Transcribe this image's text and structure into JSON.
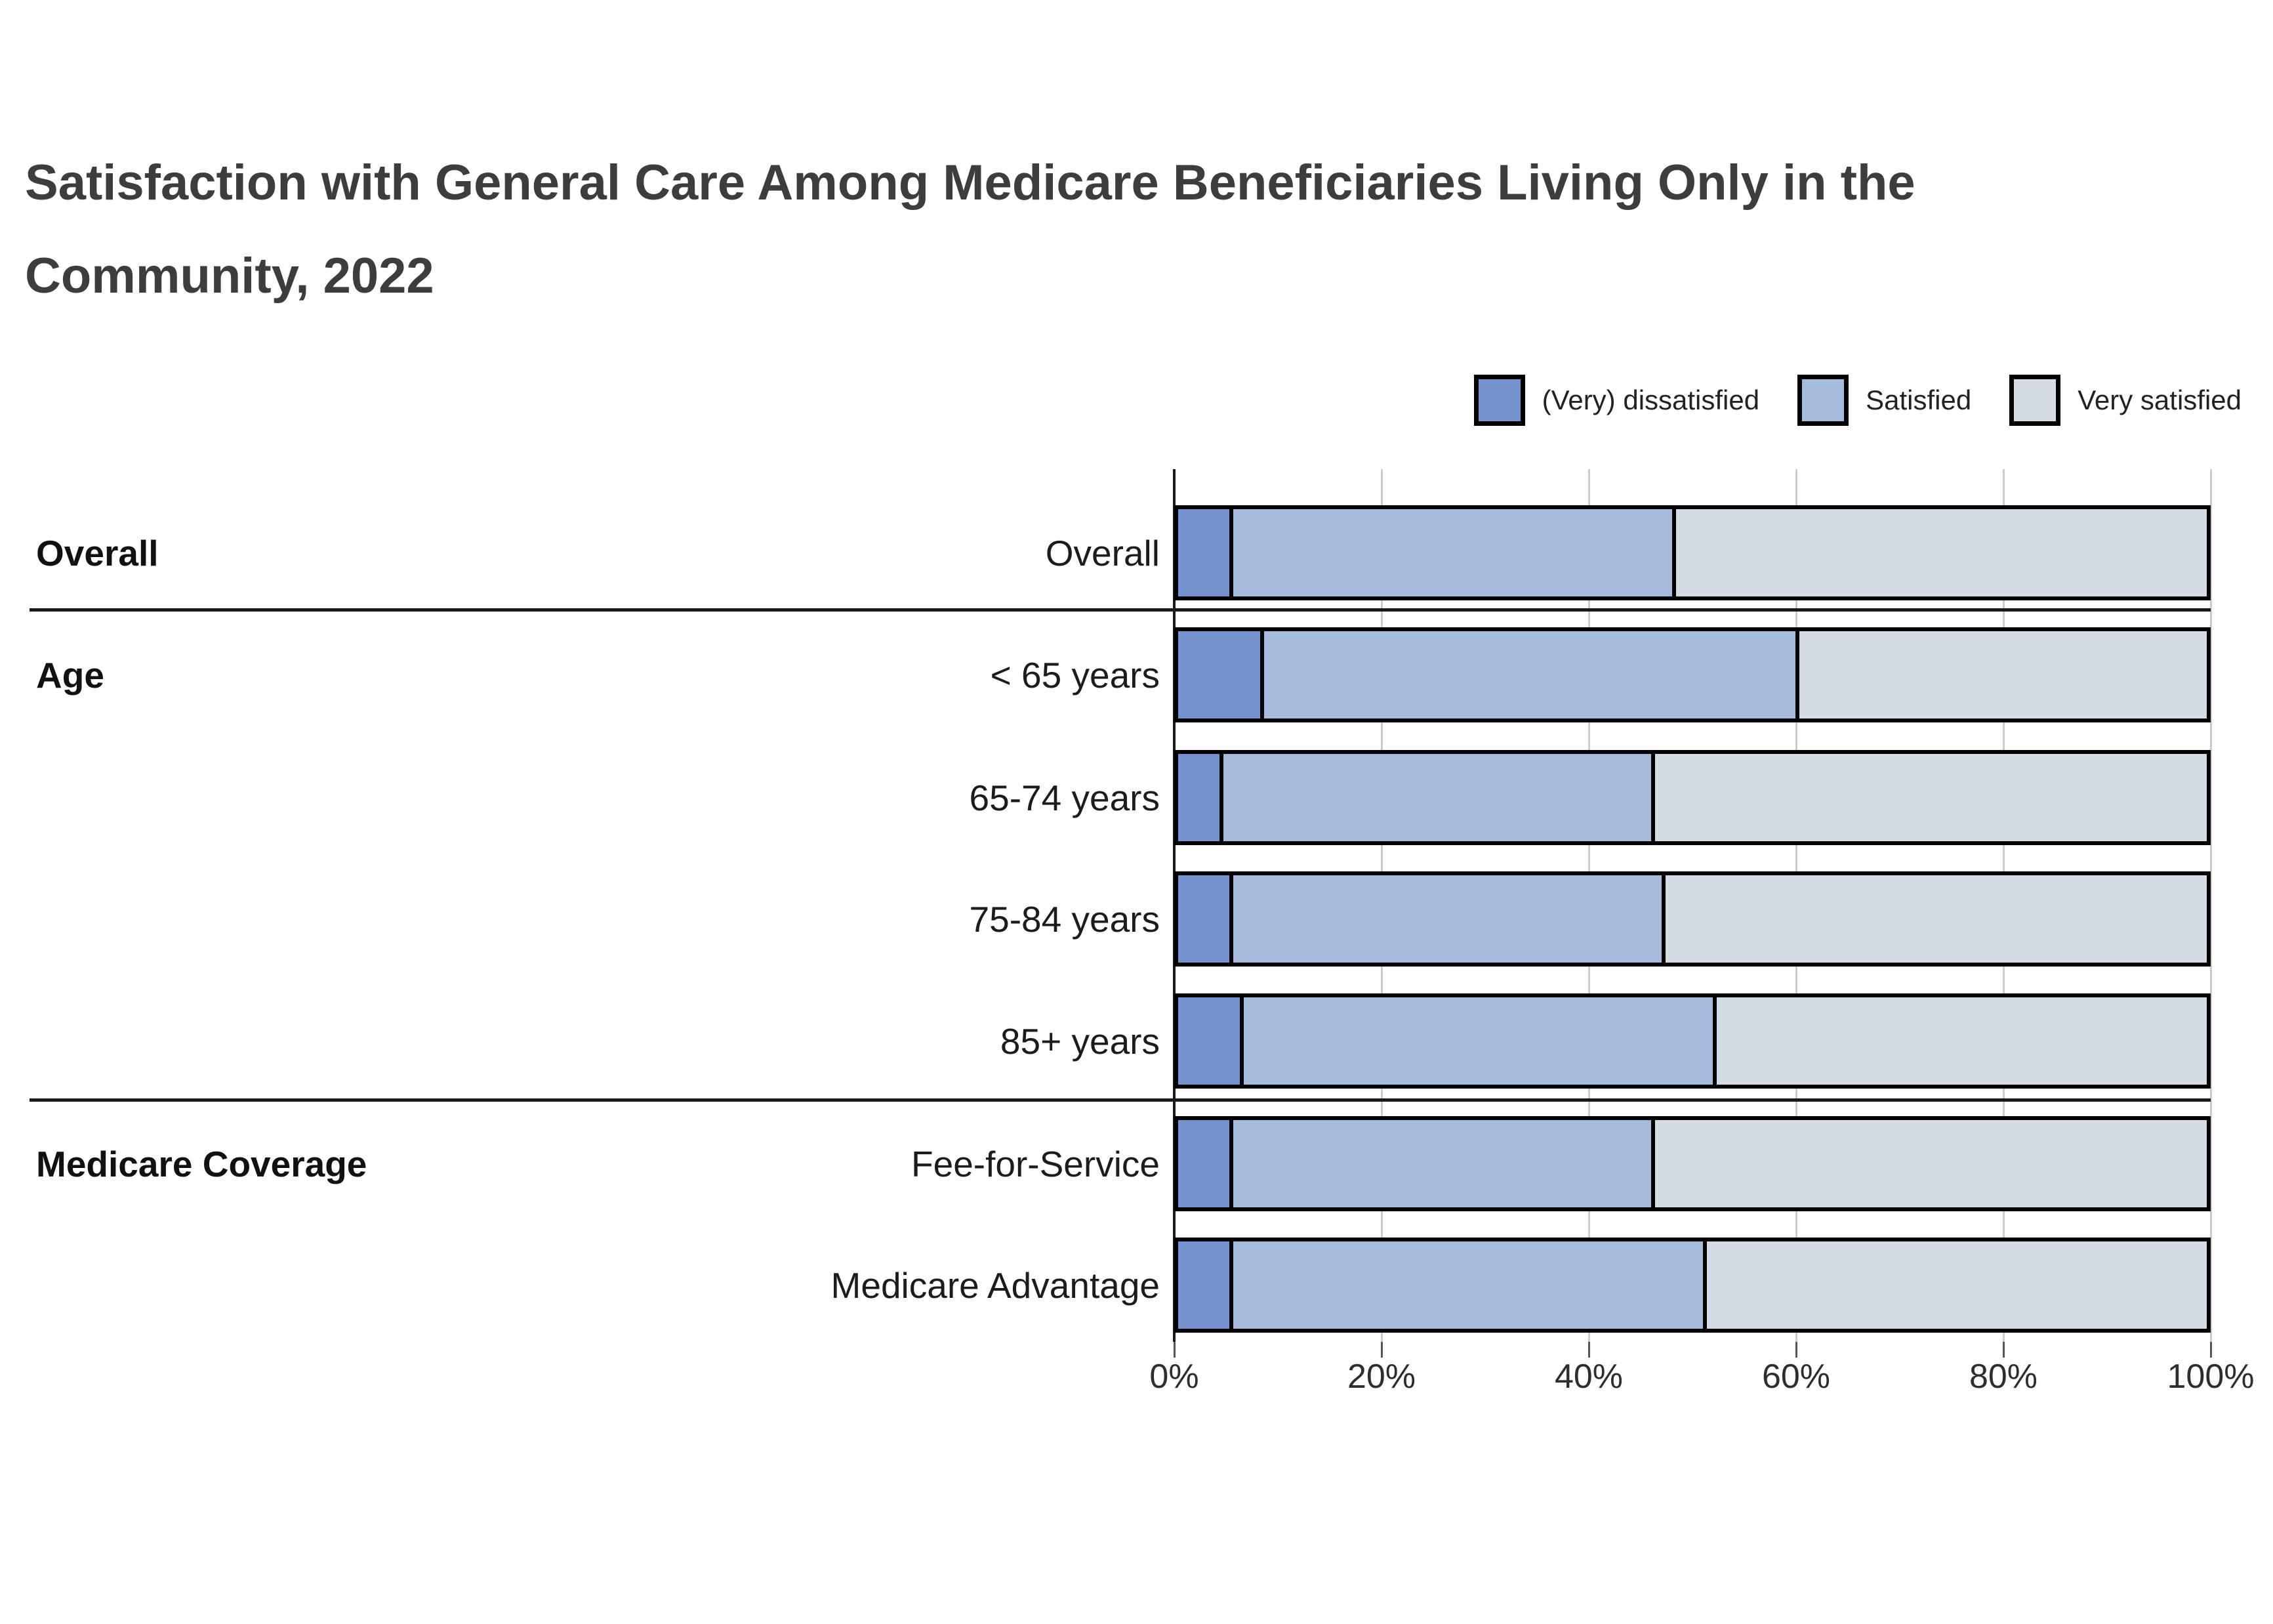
{
  "title": {
    "line1": "Satisfaction with General Care Among Medicare Beneficiaries Living Only in the",
    "line2": "Community, 2022"
  },
  "chart_data": {
    "type": "bar",
    "variant": "horizontal-stacked-100pct",
    "title": "Satisfaction with General Care Among Medicare Beneficiaries Living Only in the Community, 2022",
    "categories": [
      "Overall",
      "< 65 years",
      "65-74 years",
      "75-84 years",
      "85+ years",
      "Fee-for-Service",
      "Medicare Advantage"
    ],
    "groups": [
      {
        "label": "Overall",
        "anchor_row": 0
      },
      {
        "label": "Age",
        "anchor_row": 1
      },
      {
        "label": "Medicare Coverage",
        "anchor_row": 5
      }
    ],
    "separators_after_rows": [
      0,
      4
    ],
    "series": [
      {
        "name": "(Very) dissatisfied",
        "color": "#7492cd",
        "values": [
          5,
          8,
          4,
          5,
          6,
          5,
          5
        ]
      },
      {
        "name": "Satisfied",
        "color": "#a6bade",
        "values": [
          43,
          52,
          42,
          42,
          46,
          41,
          46
        ]
      },
      {
        "name": "Very satisfied",
        "color": "#d5dbe5",
        "values": [
          52,
          40,
          54,
          53,
          48,
          54,
          49
        ]
      }
    ],
    "x_axis": {
      "min": 0,
      "max": 100,
      "unit": "%",
      "tick_labels": [
        "0%",
        "20%",
        "40%",
        "60%",
        "80%",
        "100%"
      ],
      "grid": true,
      "legend_position": "top-right"
    },
    "colors": {
      "bar_border": "#000000",
      "axis_line": "#1a1a1a",
      "gridline": "#cccccc",
      "title_text": "#3d3d3d",
      "label_text": "#1c1c1c"
    }
  }
}
